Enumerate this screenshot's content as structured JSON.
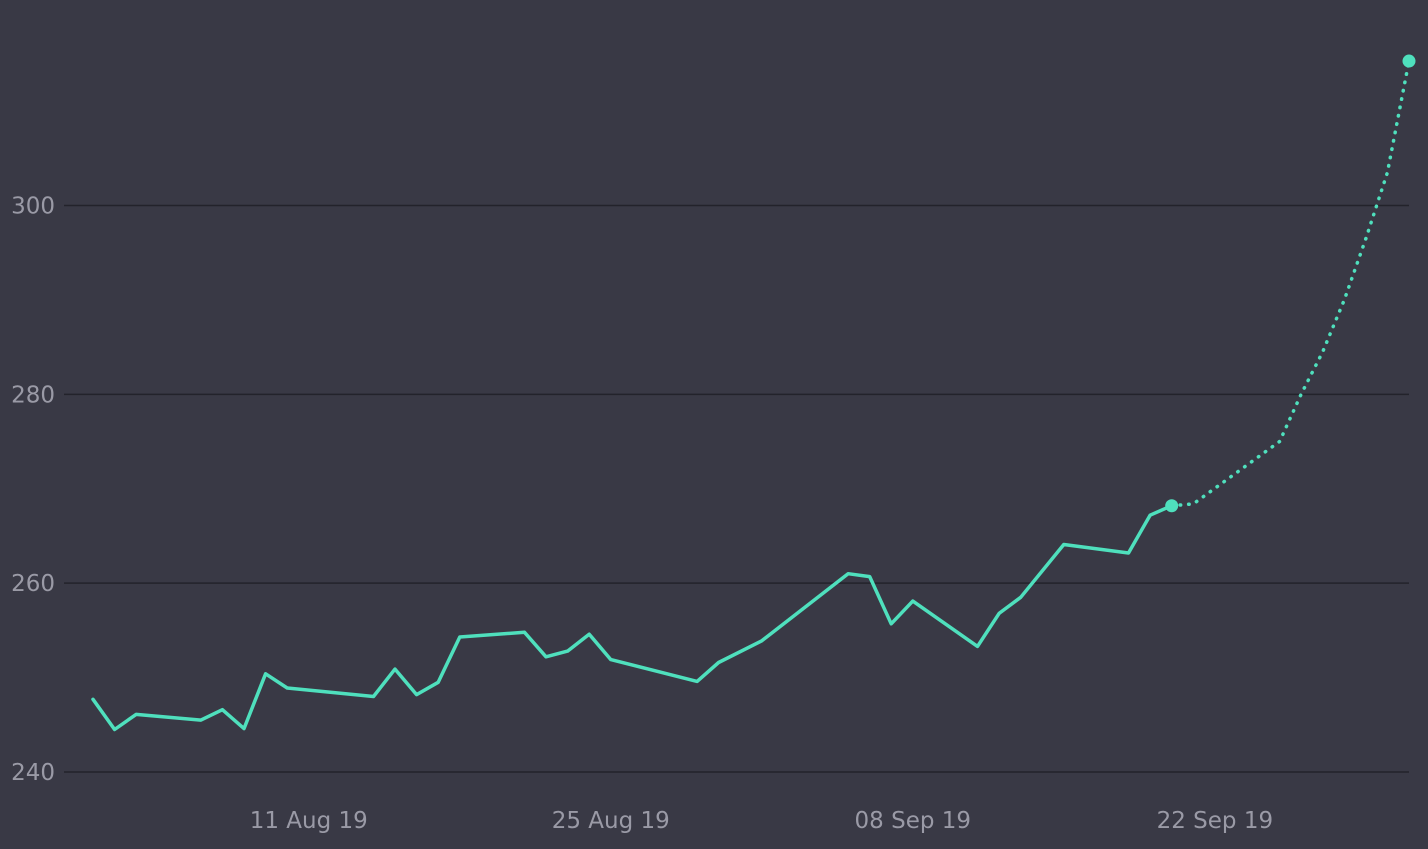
{
  "colors": {
    "background": "#393945",
    "line": "#4fe0bd",
    "grid": "#23232b",
    "tick_text": "#9a9aa6"
  },
  "chart_data": {
    "type": "line",
    "title": "",
    "xlabel": "",
    "ylabel": "",
    "ylim": [
      240,
      315
    ],
    "y_ticks": [
      240,
      260,
      280,
      300
    ],
    "y_tick_labels": [
      "240",
      "260",
      "280",
      "300"
    ],
    "xlim": [
      "2019-08-01",
      "2019-10-01"
    ],
    "x_ticks": [
      "2019-08-11",
      "2019-08-25",
      "2019-09-08",
      "2019-09-22"
    ],
    "x_tick_labels": [
      "11 Aug 19",
      "25 Aug 19",
      "08 Sep 19",
      "22 Sep 19"
    ],
    "grid": true,
    "legend": "none",
    "series": [
      {
        "style": "solid",
        "x": [
          "2019-08-01",
          "2019-08-02",
          "2019-08-03",
          "2019-08-06",
          "2019-08-07",
          "2019-08-08",
          "2019-08-09",
          "2019-08-10",
          "2019-08-14",
          "2019-08-15",
          "2019-08-16",
          "2019-08-17",
          "2019-08-18",
          "2019-08-21",
          "2019-08-22",
          "2019-08-23",
          "2019-08-24",
          "2019-08-25",
          "2019-08-29",
          "2019-08-30",
          "2019-09-01",
          "2019-09-05",
          "2019-09-06",
          "2019-09-07",
          "2019-09-08",
          "2019-09-11",
          "2019-09-12",
          "2019-09-13",
          "2019-09-15",
          "2019-09-18",
          "2019-09-19",
          "2019-09-20"
        ],
        "y": [
          247.7,
          244.5,
          246.1,
          245.5,
          246.6,
          244.6,
          250.4,
          248.9,
          248.0,
          250.9,
          248.2,
          249.5,
          254.3,
          254.8,
          252.2,
          252.8,
          254.6,
          251.9,
          249.6,
          251.6,
          253.9,
          261.0,
          260.7,
          255.7,
          258.1,
          253.3,
          256.8,
          258.5,
          264.1,
          263.2,
          267.2,
          268.2
        ]
      },
      {
        "style": "dotted",
        "x": [
          "2019-09-20",
          "2019-09-21",
          "2019-09-25",
          "2019-09-26",
          "2019-09-27",
          "2019-09-28",
          "2019-09-29",
          "2019-09-30",
          "2019-10-01"
        ],
        "y": [
          268.2,
          268.4,
          275.0,
          280.0,
          284.5,
          290.0,
          296.5,
          303.5,
          315.3
        ]
      }
    ],
    "markers": [
      {
        "x": "2019-09-20",
        "y": 268.2
      },
      {
        "x": "2019-10-01",
        "y": 315.3
      }
    ]
  }
}
